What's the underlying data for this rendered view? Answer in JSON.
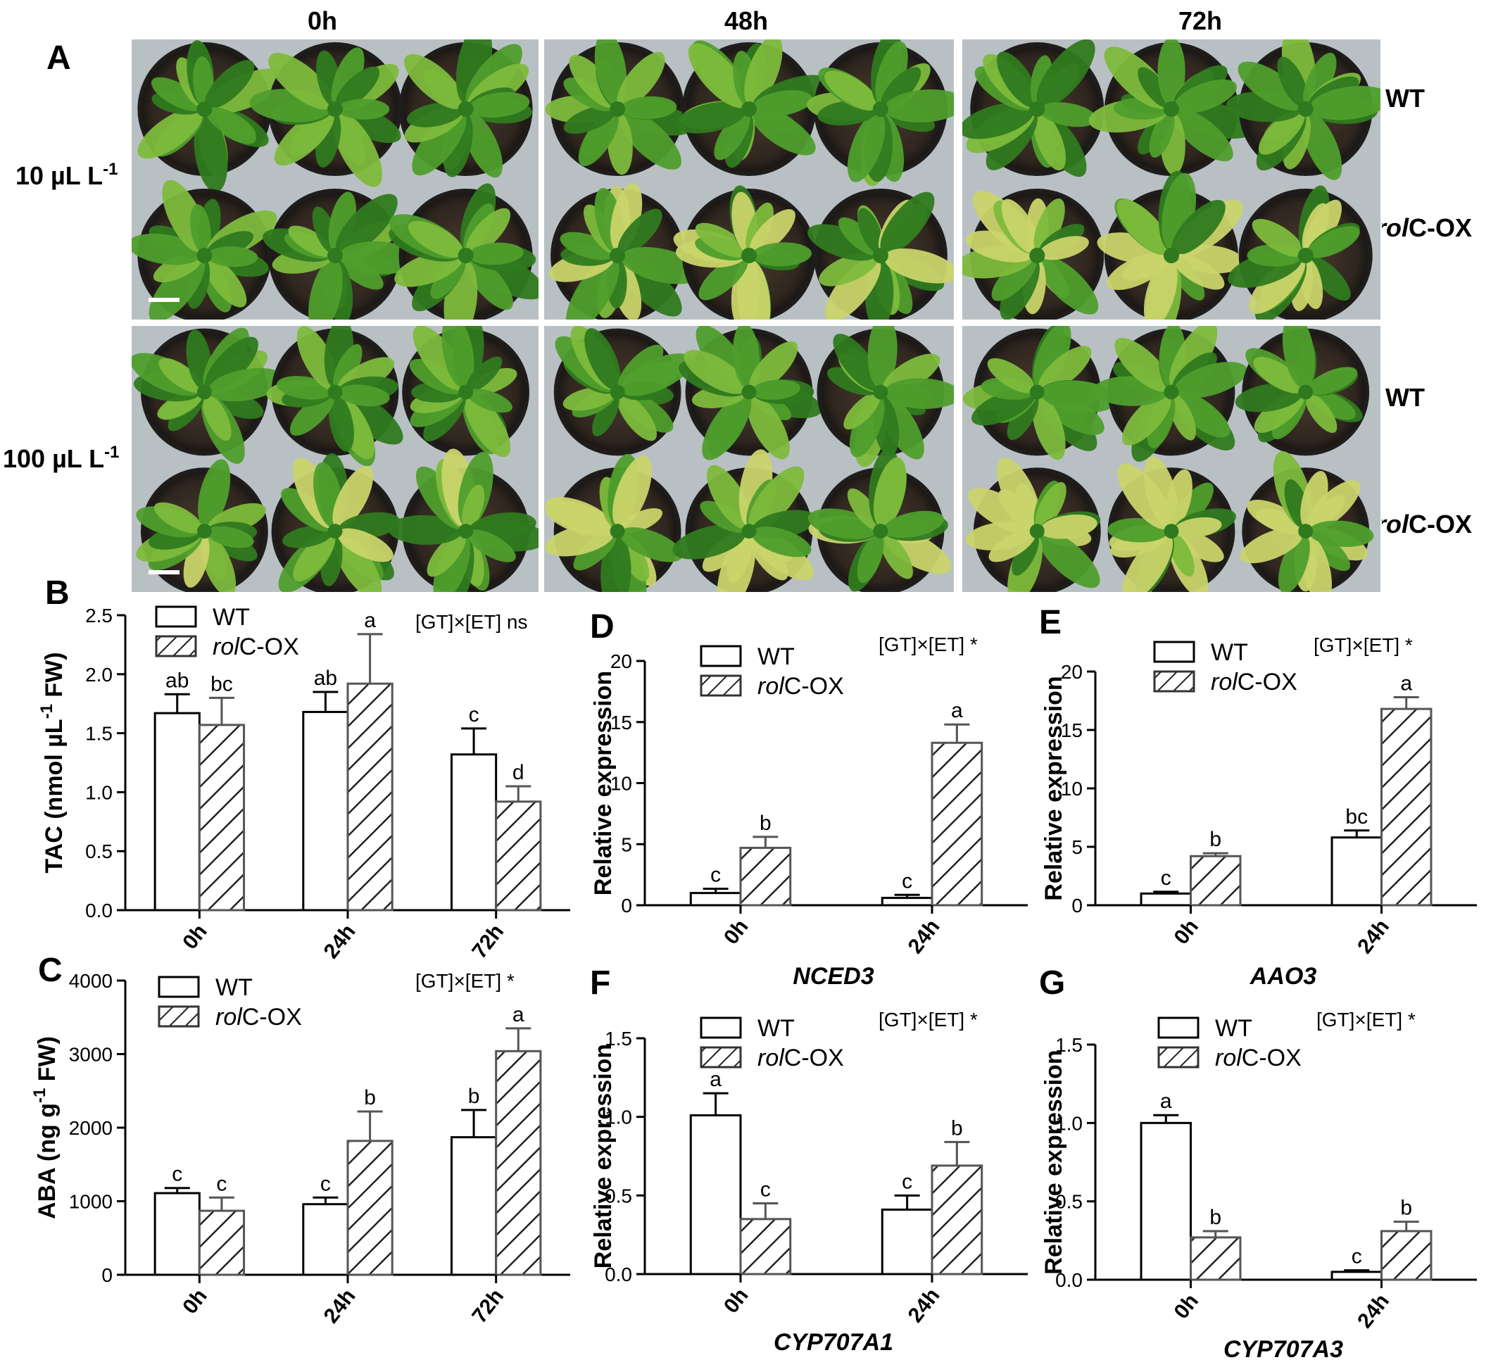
{
  "panel_a": {
    "letter": "A",
    "time_labels": [
      "0h",
      "48h",
      "72h"
    ],
    "concentration_rows": [
      {
        "label": "10 µL L",
        "sup": "-1"
      },
      {
        "label": "100 µL L",
        "sup": "-1"
      }
    ],
    "genotype_labels": [
      {
        "italic": "",
        "rest": "WT"
      },
      {
        "italic": "rol",
        "rest": "C-OX"
      },
      {
        "italic": "",
        "rest": "WT"
      },
      {
        "italic": "rol",
        "rest": "C-OX"
      }
    ],
    "colors": {
      "soil": "#3b2f26",
      "pot": "#1f1d1c",
      "leaf_dark": "#2f7a1f",
      "leaf": "#4f9e2c",
      "leaf_light": "#7dba3c",
      "yellowing": "#c9d46a",
      "tray": "#b9c0c4"
    }
  },
  "legend": {
    "wt": "WT",
    "rol_italic": "rol",
    "rol_rest": "C-OX"
  },
  "chart_data": [
    {
      "panel": "B",
      "type": "bar",
      "categories": [
        "0h",
        "24h",
        "72h"
      ],
      "series": [
        {
          "name": "WT",
          "values": [
            1.67,
            1.68,
            1.32
          ],
          "errors": [
            0.16,
            0.17,
            0.22
          ],
          "letters": [
            "ab",
            "ab",
            "c"
          ]
        },
        {
          "name": "rolC-OX",
          "values": [
            1.57,
            1.92,
            0.92
          ],
          "errors": [
            0.23,
            0.42,
            0.13
          ],
          "letters": [
            "bc",
            "a",
            "d"
          ]
        }
      ],
      "ylabel_main": "TAC (nmol µL",
      "ylabel_sup": "-1",
      "ylabel_end": " FW)",
      "xlabel": "",
      "ylim": [
        0,
        2.5
      ],
      "yticks": [
        "0.0",
        "0.5",
        "1.0",
        "1.5",
        "2.0",
        "2.5"
      ],
      "annotation": "[GT]×[ET] ns"
    },
    {
      "panel": "C",
      "type": "bar",
      "categories": [
        "0h",
        "24h",
        "72h"
      ],
      "series": [
        {
          "name": "WT",
          "values": [
            1110,
            960,
            1870
          ],
          "errors": [
            70,
            90,
            370
          ],
          "letters": [
            "c",
            "c",
            "b"
          ]
        },
        {
          "name": "rolC-OX",
          "values": [
            870,
            1820,
            3040
          ],
          "errors": [
            180,
            400,
            310
          ],
          "letters": [
            "c",
            "b",
            "a"
          ]
        }
      ],
      "ylabel_main": "ABA (ng g",
      "ylabel_sup": "-1",
      "ylabel_end": " FW)",
      "xlabel": "",
      "ylim": [
        0,
        4000
      ],
      "yticks": [
        "0",
        "1000",
        "2000",
        "3000",
        "4000"
      ],
      "annotation": "[GT]×[ET] *"
    },
    {
      "panel": "D",
      "type": "bar",
      "categories": [
        "0h",
        "24h"
      ],
      "series": [
        {
          "name": "WT",
          "values": [
            1.0,
            0.6
          ],
          "errors": [
            0.35,
            0.25
          ],
          "letters": [
            "c",
            "c"
          ]
        },
        {
          "name": "rolC-OX",
          "values": [
            4.7,
            13.3
          ],
          "errors": [
            0.9,
            1.5
          ],
          "letters": [
            "b",
            "a"
          ]
        }
      ],
      "ylabel_main": "Relative expression",
      "ylabel_sup": "",
      "ylabel_end": "",
      "xlabel": "NCED3",
      "ylim": [
        0,
        20
      ],
      "yticks": [
        "0",
        "5",
        "10",
        "15",
        "20"
      ],
      "annotation": "[GT]×[ET] *"
    },
    {
      "panel": "E",
      "type": "bar",
      "categories": [
        "0h",
        "24h"
      ],
      "series": [
        {
          "name": "WT",
          "values": [
            1.0,
            5.8
          ],
          "errors": [
            0.15,
            0.6
          ],
          "letters": [
            "c",
            "bc"
          ]
        },
        {
          "name": "rolC-OX",
          "values": [
            4.2,
            16.8
          ],
          "errors": [
            0.25,
            1.0
          ],
          "letters": [
            "b",
            "a"
          ]
        }
      ],
      "ylabel_main": "Relative expression",
      "ylabel_sup": "",
      "ylabel_end": "",
      "xlabel": "AAO3",
      "ylim": [
        0,
        20
      ],
      "yticks": [
        "0",
        "5",
        "10",
        "15",
        "20"
      ],
      "annotation": "[GT]×[ET] *"
    },
    {
      "panel": "F",
      "type": "bar",
      "categories": [
        "0h",
        "24h"
      ],
      "series": [
        {
          "name": "WT",
          "values": [
            1.01,
            0.41
          ],
          "errors": [
            0.14,
            0.09
          ],
          "letters": [
            "a",
            "c"
          ]
        },
        {
          "name": "rolC-OX",
          "values": [
            0.35,
            0.69
          ],
          "errors": [
            0.1,
            0.15
          ],
          "letters": [
            "c",
            "b"
          ]
        }
      ],
      "ylabel_main": "Relative expression",
      "ylabel_sup": "",
      "ylabel_end": "",
      "xlabel": "CYP707A1",
      "ylim": [
        0,
        1.5
      ],
      "yticks": [
        "0.0",
        "0.5",
        "1.0",
        "1.5"
      ],
      "annotation": "[GT]×[ET] *"
    },
    {
      "panel": "G",
      "type": "bar",
      "categories": [
        "0h",
        "24h"
      ],
      "series": [
        {
          "name": "WT",
          "values": [
            1.0,
            0.05
          ],
          "errors": [
            0.05,
            0.01
          ],
          "letters": [
            "a",
            "c"
          ]
        },
        {
          "name": "rolC-OX",
          "values": [
            0.27,
            0.31
          ],
          "errors": [
            0.04,
            0.06
          ],
          "letters": [
            "b",
            "b"
          ]
        }
      ],
      "ylabel_main": "Relative expression",
      "ylabel_sup": "",
      "ylabel_end": "",
      "xlabel": "CYP707A3",
      "ylim": [
        0,
        1.5
      ],
      "yticks": [
        "0.0",
        "0.5",
        "1.0",
        "1.5"
      ],
      "annotation": "[GT]×[ET] *"
    }
  ]
}
